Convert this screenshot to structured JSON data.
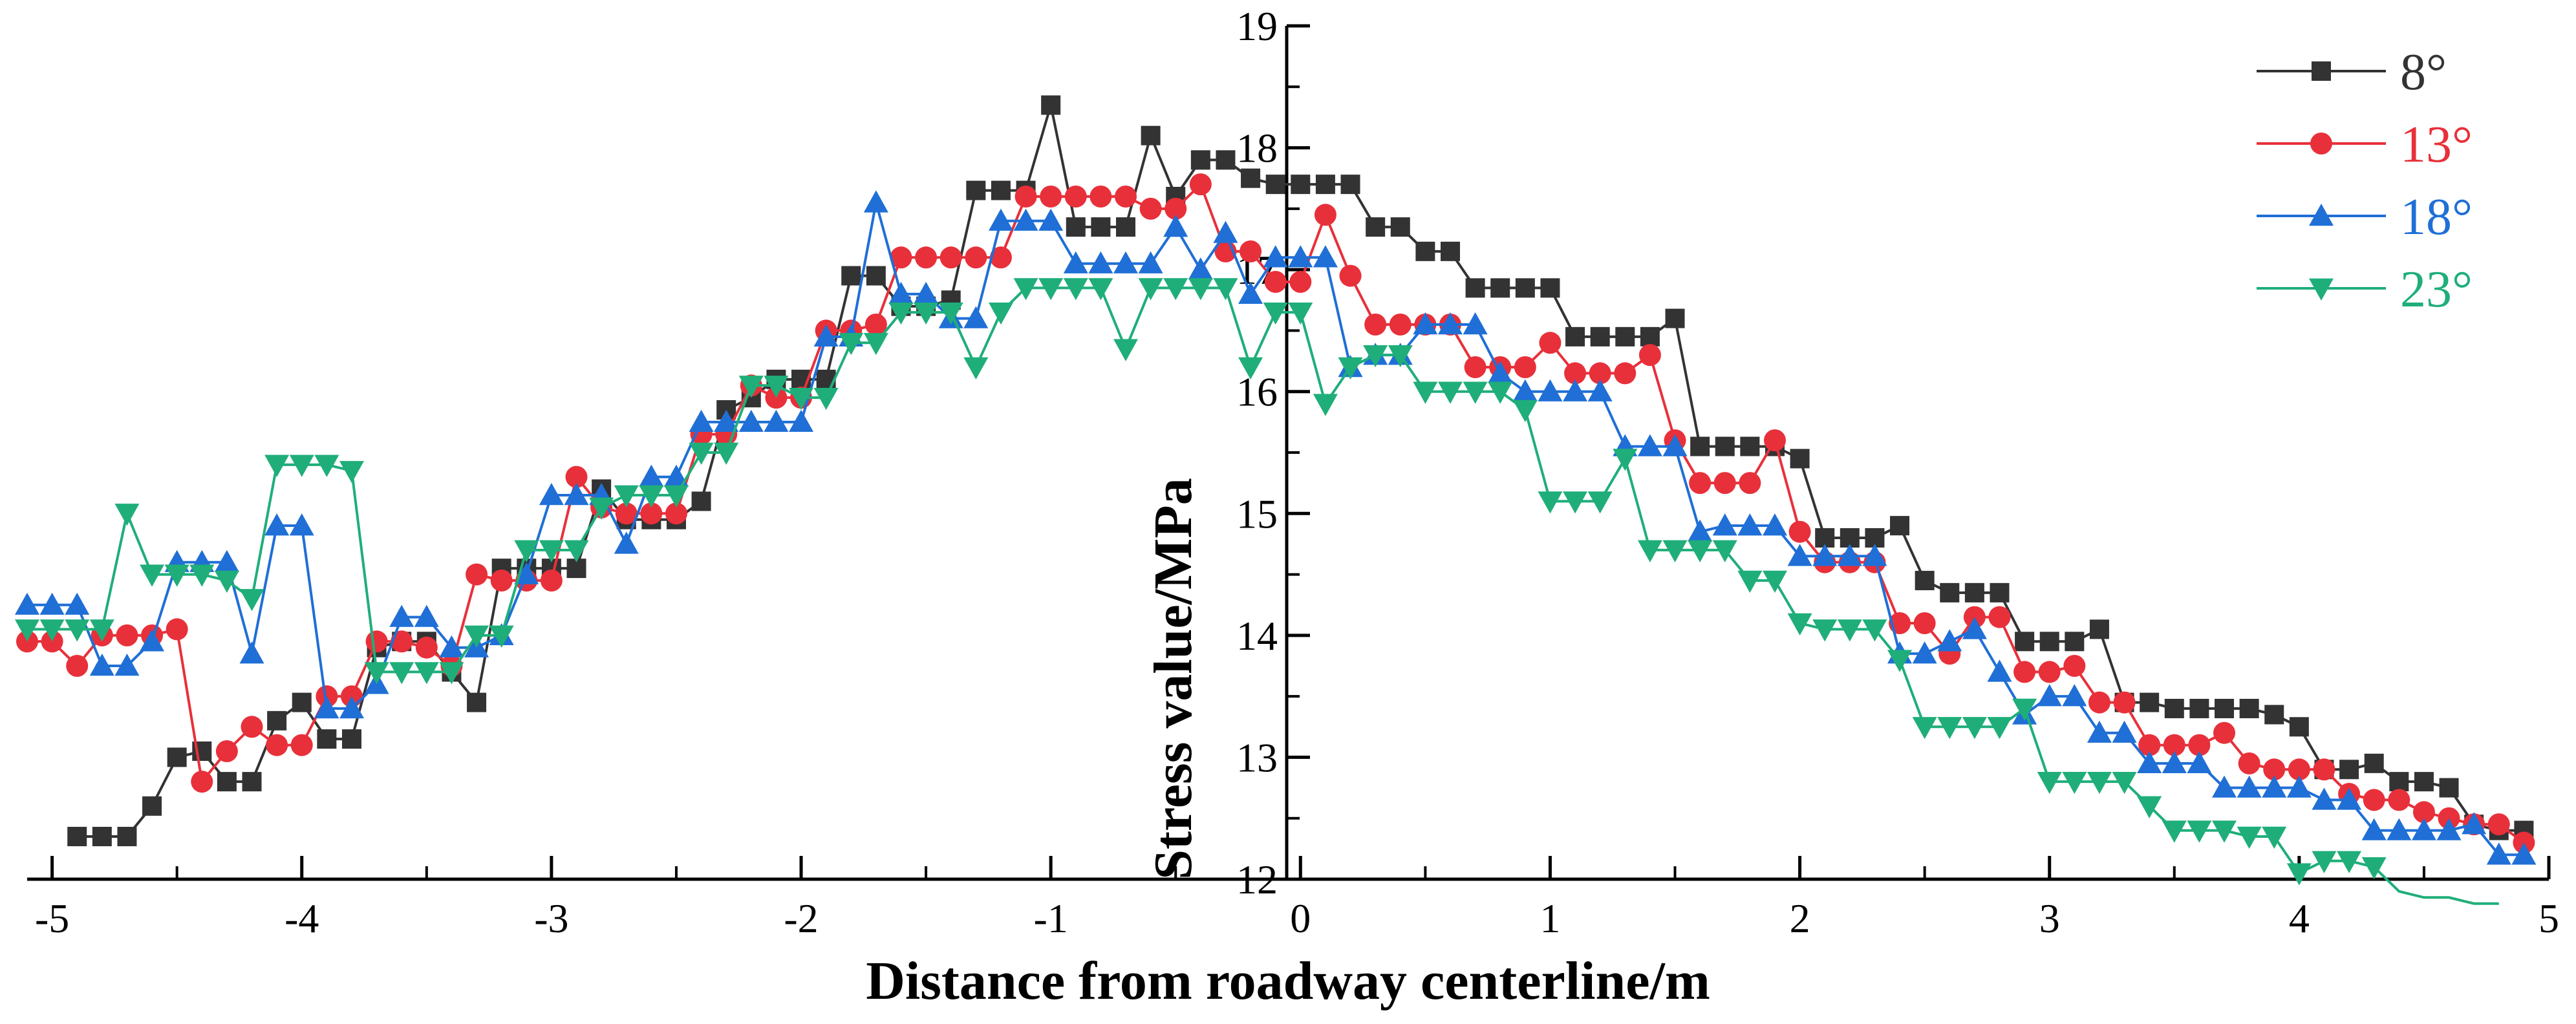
{
  "chart_data": {
    "type": "line",
    "title": "",
    "xlabel": "Distance from roadway centerline/m",
    "ylabel": "Stress value/MPa",
    "xlim": [
      -5.1,
      5.0
    ],
    "ylim": [
      12,
      19
    ],
    "xticks": [
      -5,
      -4,
      -3,
      -2,
      -1,
      0,
      1,
      2,
      3,
      4,
      5
    ],
    "yticks": [
      12,
      13,
      14,
      15,
      16,
      17,
      18,
      19
    ],
    "xtick_labels": [
      "-5",
      "-4",
      "-3",
      "-2",
      "-1",
      "0",
      "1",
      "2",
      "3",
      "4",
      "5"
    ],
    "ytick_labels": [
      "12",
      "13",
      "14",
      "15",
      "16",
      "17",
      "18",
      "19"
    ],
    "legend_position": "top-right",
    "series": [
      {
        "name": "8°",
        "color": "#333333",
        "marker": "square",
        "x": [
          -4.9,
          -4.8,
          -4.7,
          -4.6,
          -4.5,
          -4.4,
          -4.3,
          -4.2,
          -4.1,
          -4.0,
          -3.9,
          -3.8,
          -3.7,
          -3.6,
          -3.5,
          -3.4,
          -3.3,
          -3.2,
          -3.1,
          -3.0,
          -2.9,
          -2.8,
          -2.7,
          -2.6,
          -2.5,
          -2.4,
          -2.3,
          -2.2,
          -2.1,
          -2.0,
          -1.9,
          -1.8,
          -1.7,
          -1.6,
          -1.5,
          -1.4,
          -1.3,
          -1.2,
          -1.1,
          -1.0,
          -0.9,
          -0.8,
          -0.7,
          -0.6,
          -0.5,
          -0.4,
          -0.3,
          -0.2,
          -0.1,
          0.0,
          0.1,
          0.2,
          0.3,
          0.4,
          0.5,
          0.6,
          0.7,
          0.8,
          0.9,
          1.0,
          1.1,
          1.2,
          1.3,
          1.4,
          1.5,
          1.6,
          1.7,
          1.8,
          1.9,
          2.0,
          2.1,
          2.2,
          2.3,
          2.4,
          2.5,
          2.6,
          2.7,
          2.8,
          2.9,
          3.0,
          3.1,
          3.2,
          3.3,
          3.4,
          3.5,
          3.6,
          3.7,
          3.8,
          3.9,
          4.0,
          4.1,
          4.2,
          4.3,
          4.4,
          4.5,
          4.6,
          4.7,
          4.8,
          4.9
        ],
        "values": [
          12.35,
          12.35,
          12.35,
          12.6,
          13.0,
          13.05,
          12.8,
          12.8,
          13.3,
          13.45,
          13.15,
          13.15,
          13.9,
          13.95,
          13.95,
          13.7,
          13.45,
          14.55,
          14.55,
          14.55,
          14.55,
          15.2,
          14.95,
          14.95,
          14.95,
          15.1,
          15.85,
          15.95,
          16.1,
          16.1,
          16.1,
          16.95,
          16.95,
          16.7,
          16.7,
          16.75,
          17.65,
          17.65,
          17.65,
          18.35,
          17.35,
          17.35,
          17.35,
          18.1,
          17.6,
          17.9,
          17.9,
          17.75,
          17.7,
          17.7,
          17.7,
          17.7,
          17.35,
          17.35,
          17.15,
          17.15,
          16.85,
          16.85,
          16.85,
          16.85,
          16.45,
          16.45,
          16.45,
          16.45,
          16.6,
          15.55,
          15.55,
          15.55,
          15.55,
          15.45,
          14.8,
          14.8,
          14.8,
          14.9,
          14.45,
          14.35,
          14.35,
          14.35,
          13.95,
          13.95,
          13.95,
          14.05,
          13.45,
          13.45,
          13.4,
          13.4,
          13.4,
          13.4,
          13.35,
          13.25,
          12.9,
          12.9,
          12.95,
          12.8,
          12.8,
          12.75,
          12.45,
          12.4,
          12.4
        ]
      },
      {
        "name": "13°",
        "color": "#e8303a",
        "marker": "circle",
        "x": [
          -5.1,
          -5.0,
          -4.9,
          -4.8,
          -4.7,
          -4.6,
          -4.5,
          -4.4,
          -4.3,
          -4.2,
          -4.1,
          -4.0,
          -3.9,
          -3.8,
          -3.7,
          -3.6,
          -3.5,
          -3.4,
          -3.3,
          -3.2,
          -3.1,
          -3.0,
          -2.9,
          -2.8,
          -2.7,
          -2.6,
          -2.5,
          -2.4,
          -2.3,
          -2.2,
          -2.1,
          -2.0,
          -1.9,
          -1.8,
          -1.7,
          -1.6,
          -1.5,
          -1.4,
          -1.3,
          -1.2,
          -1.1,
          -1.0,
          -0.9,
          -0.8,
          -0.7,
          -0.6,
          -0.5,
          -0.4,
          -0.3,
          -0.2,
          -0.1,
          0.0,
          0.1,
          0.2,
          0.3,
          0.4,
          0.5,
          0.6,
          0.7,
          0.8,
          0.9,
          1.0,
          1.1,
          1.2,
          1.3,
          1.4,
          1.5,
          1.6,
          1.7,
          1.8,
          1.9,
          2.0,
          2.1,
          2.2,
          2.3,
          2.4,
          2.5,
          2.6,
          2.7,
          2.8,
          2.9,
          3.0,
          3.1,
          3.2,
          3.3,
          3.4,
          3.5,
          3.6,
          3.7,
          3.8,
          3.9,
          4.0,
          4.1,
          4.2,
          4.3,
          4.4,
          4.5,
          4.6,
          4.7,
          4.8,
          4.9
        ],
        "values": [
          13.95,
          13.95,
          13.75,
          14.0,
          14.0,
          14.0,
          14.05,
          12.8,
          13.05,
          13.25,
          13.1,
          13.1,
          13.5,
          13.5,
          13.95,
          13.95,
          13.9,
          13.75,
          14.5,
          14.45,
          14.45,
          14.45,
          15.3,
          15.05,
          15.0,
          15.0,
          15.0,
          15.65,
          15.65,
          16.05,
          15.95,
          15.95,
          16.5,
          16.5,
          16.55,
          17.1,
          17.1,
          17.1,
          17.1,
          17.1,
          17.6,
          17.6,
          17.6,
          17.6,
          17.6,
          17.5,
          17.5,
          17.7,
          17.15,
          17.15,
          16.9,
          16.9,
          17.45,
          16.95,
          16.55,
          16.55,
          16.55,
          16.55,
          16.2,
          16.2,
          16.2,
          16.4,
          16.15,
          16.15,
          16.15,
          16.3,
          15.6,
          15.25,
          15.25,
          15.25,
          15.6,
          14.85,
          14.6,
          14.6,
          14.6,
          14.1,
          14.1,
          13.85,
          14.15,
          14.15,
          13.7,
          13.7,
          13.75,
          13.45,
          13.45,
          13.1,
          13.1,
          13.1,
          13.2,
          12.95,
          12.9,
          12.9,
          12.9,
          12.7,
          12.65,
          12.65,
          12.55,
          12.5,
          12.45,
          12.45,
          12.3
        ]
      },
      {
        "name": "18°",
        "color": "#1f6fd6",
        "marker": "triangle-up",
        "x": [
          -5.1,
          -5.0,
          -4.9,
          -4.8,
          -4.7,
          -4.6,
          -4.5,
          -4.4,
          -4.3,
          -4.2,
          -4.1,
          -4.0,
          -3.9,
          -3.8,
          -3.7,
          -3.6,
          -3.5,
          -3.4,
          -3.3,
          -3.2,
          -3.1,
          -3.0,
          -2.9,
          -2.8,
          -2.7,
          -2.6,
          -2.5,
          -2.4,
          -2.3,
          -2.2,
          -2.1,
          -2.0,
          -1.9,
          -1.8,
          -1.7,
          -1.6,
          -1.5,
          -1.4,
          -1.3,
          -1.2,
          -1.1,
          -1.0,
          -0.9,
          -0.8,
          -0.7,
          -0.6,
          -0.5,
          -0.4,
          -0.3,
          -0.2,
          -0.1,
          0.0,
          0.1,
          0.2,
          0.3,
          0.4,
          0.5,
          0.6,
          0.7,
          0.8,
          0.9,
          1.0,
          1.1,
          1.2,
          1.3,
          1.4,
          1.5,
          1.6,
          1.7,
          1.8,
          1.9,
          2.0,
          2.1,
          2.2,
          2.3,
          2.4,
          2.5,
          2.6,
          2.7,
          2.8,
          2.9,
          3.0,
          3.1,
          3.2,
          3.3,
          3.4,
          3.5,
          3.6,
          3.7,
          3.8,
          3.9,
          4.0,
          4.1,
          4.2,
          4.3,
          4.4,
          4.5,
          4.6,
          4.7,
          4.8,
          4.9
        ],
        "values": [
          14.25,
          14.25,
          14.25,
          13.75,
          13.75,
          13.95,
          14.6,
          14.6,
          14.6,
          13.85,
          14.9,
          14.9,
          13.4,
          13.4,
          13.6,
          14.15,
          14.15,
          13.9,
          13.9,
          14.0,
          14.5,
          15.15,
          15.15,
          15.15,
          14.75,
          15.3,
          15.3,
          15.75,
          15.75,
          15.75,
          15.75,
          15.75,
          16.45,
          16.45,
          17.55,
          16.8,
          16.8,
          16.6,
          16.6,
          17.4,
          17.4,
          17.4,
          17.05,
          17.05,
          17.05,
          17.05,
          17.35,
          17.0,
          17.3,
          16.8,
          17.1,
          17.1,
          17.1,
          16.2,
          16.3,
          16.3,
          16.55,
          16.55,
          16.55,
          16.15,
          16.0,
          16.0,
          16.0,
          16.0,
          15.55,
          15.55,
          15.55,
          14.85,
          14.9,
          14.9,
          14.9,
          14.65,
          14.65,
          14.65,
          14.65,
          13.85,
          13.85,
          13.95,
          14.05,
          13.7,
          13.35,
          13.5,
          13.5,
          13.2,
          13.2,
          12.95,
          12.95,
          12.95,
          12.75,
          12.75,
          12.75,
          12.75,
          12.65,
          12.65,
          12.4,
          12.4,
          12.4,
          12.4,
          12.45,
          12.2,
          12.2
        ]
      },
      {
        "name": "23°",
        "color": "#1fae7a",
        "marker": "triangle-down",
        "x": [
          -5.1,
          -5.0,
          -4.9,
          -4.8,
          -4.7,
          -4.6,
          -4.5,
          -4.4,
          -4.3,
          -4.2,
          -4.1,
          -4.0,
          -3.9,
          -3.8,
          -3.7,
          -3.6,
          -3.5,
          -3.4,
          -3.3,
          -3.2,
          -3.1,
          -3.0,
          -2.9,
          -2.8,
          -2.7,
          -2.6,
          -2.5,
          -2.4,
          -2.3,
          -2.2,
          -2.1,
          -2.0,
          -1.9,
          -1.8,
          -1.7,
          -1.6,
          -1.5,
          -1.4,
          -1.3,
          -1.2,
          -1.1,
          -1.0,
          -0.9,
          -0.8,
          -0.7,
          -0.6,
          -0.5,
          -0.4,
          -0.3,
          -0.2,
          -0.1,
          0.0,
          0.1,
          0.2,
          0.3,
          0.4,
          0.5,
          0.6,
          0.7,
          0.8,
          0.9,
          1.0,
          1.1,
          1.2,
          1.3,
          1.4,
          1.5,
          1.6,
          1.7,
          1.8,
          1.9,
          2.0,
          2.1,
          2.2,
          2.3,
          2.4,
          2.5,
          2.6,
          2.7,
          2.8,
          2.9,
          3.0,
          3.1,
          3.2,
          3.3,
          3.4,
          3.5,
          3.6,
          3.7,
          3.8,
          3.9,
          4.0,
          4.1,
          4.2,
          4.3,
          4.4,
          4.5,
          4.6,
          4.7,
          4.8
        ],
        "values": [
          14.05,
          14.05,
          14.05,
          14.05,
          15.0,
          14.5,
          14.5,
          14.5,
          14.45,
          14.3,
          15.4,
          15.4,
          15.4,
          15.35,
          13.7,
          13.7,
          13.7,
          13.7,
          14.0,
          14.0,
          14.7,
          14.7,
          14.7,
          15.05,
          15.15,
          15.15,
          15.15,
          15.5,
          15.5,
          16.05,
          16.05,
          15.95,
          15.95,
          16.4,
          16.4,
          16.65,
          16.65,
          16.65,
          16.2,
          16.65,
          16.85,
          16.85,
          16.85,
          16.85,
          16.35,
          16.85,
          16.85,
          16.85,
          16.85,
          16.2,
          16.65,
          16.65,
          15.9,
          16.2,
          16.3,
          16.3,
          16.0,
          16.0,
          16.0,
          16.0,
          15.85,
          15.1,
          15.1,
          15.1,
          15.45,
          14.7,
          14.7,
          14.7,
          14.7,
          14.45,
          14.45,
          14.1,
          14.05,
          14.05,
          14.05,
          13.8,
          13.25,
          13.25,
          13.25,
          13.25,
          13.4,
          12.8,
          12.8,
          12.8,
          12.8,
          12.6,
          12.4,
          12.4,
          12.4,
          12.35,
          12.35,
          12.05,
          12.15,
          12.15,
          12.1,
          11.9,
          11.85,
          11.85,
          11.8,
          11.8
        ]
      }
    ]
  }
}
